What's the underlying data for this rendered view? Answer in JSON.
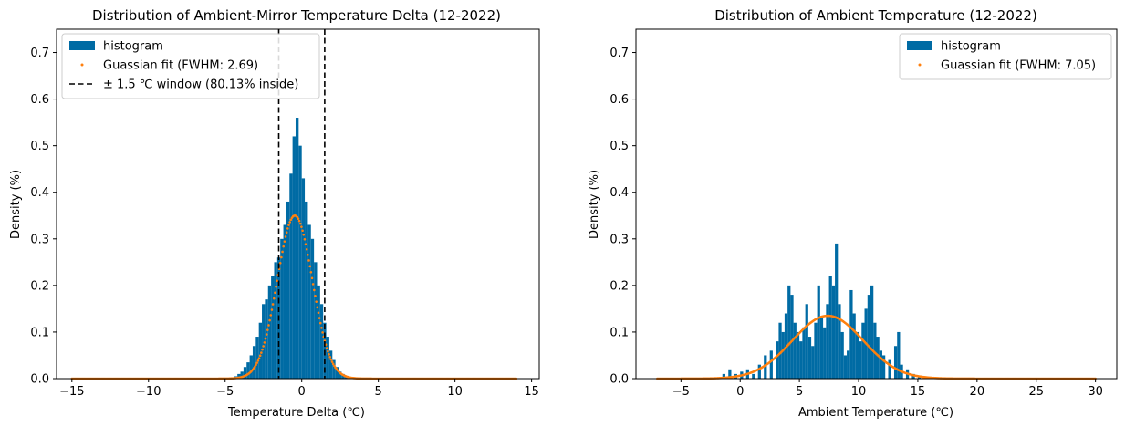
{
  "chart_data": [
    {
      "type": "bar",
      "title": "Distribution of Ambient-Mirror Temperature Delta (12-2022)",
      "xlabel": "Temperature Delta (℃)",
      "ylabel": "Density (%)",
      "xlim": [
        -16,
        15.5
      ],
      "ylim": [
        0,
        0.75
      ],
      "xticks": [
        -15,
        -10,
        -5,
        0,
        5,
        10,
        15
      ],
      "xtick_labels": [
        "−15",
        "−10",
        "−5",
        "0",
        "5",
        "10",
        "15"
      ],
      "yticks": [
        0.0,
        0.1,
        0.2,
        0.3,
        0.4,
        0.5,
        0.6,
        0.7
      ],
      "ytick_labels": [
        "0.0",
        "0.1",
        "0.2",
        "0.3",
        "0.4",
        "0.5",
        "0.6",
        "0.7"
      ],
      "legend_position": "top-left",
      "series": [
        {
          "name": "histogram",
          "kind": "histogram",
          "color": "#006ba4",
          "bin_width": 0.2,
          "x": [
            -4.4,
            -4.2,
            -4.0,
            -3.8,
            -3.6,
            -3.4,
            -3.2,
            -3.0,
            -2.8,
            -2.6,
            -2.4,
            -2.2,
            -2.0,
            -1.8,
            -1.6,
            -1.4,
            -1.2,
            -1.0,
            -0.8,
            -0.6,
            -0.4,
            -0.2,
            0.0,
            0.2,
            0.4,
            0.6,
            0.8,
            1.0,
            1.2,
            1.4,
            1.6,
            1.8,
            2.0,
            2.2,
            2.4,
            2.6,
            2.8,
            3.0
          ],
          "values": [
            0.005,
            0.01,
            0.015,
            0.025,
            0.035,
            0.05,
            0.07,
            0.09,
            0.12,
            0.16,
            0.17,
            0.2,
            0.22,
            0.25,
            0.26,
            0.3,
            0.33,
            0.38,
            0.44,
            0.52,
            0.56,
            0.5,
            0.43,
            0.38,
            0.33,
            0.3,
            0.25,
            0.2,
            0.16,
            0.12,
            0.09,
            0.06,
            0.04,
            0.025,
            0.015,
            0.01,
            0.005,
            0.003
          ]
        },
        {
          "name": "Guassian fit (FWHM: 2.69)",
          "kind": "gaussian",
          "color": "#ff800e",
          "mean": -0.45,
          "fwhm": 2.69,
          "peak": 0.35,
          "x_range": [
            -15,
            14
          ]
        },
        {
          "name": "± 1.5 ℃ window (80.13% inside)",
          "kind": "vlines",
          "color": "#000000",
          "x": [
            -1.5,
            1.5
          ]
        }
      ]
    },
    {
      "type": "bar",
      "title": "Distribution of Ambient Temperature (12-2022)",
      "xlabel": "Ambient Temperature (℃)",
      "ylabel": "Density (%)",
      "xlim": [
        -8.8,
        31.8
      ],
      "ylim": [
        0,
        0.75
      ],
      "xticks": [
        -5,
        0,
        5,
        10,
        15,
        20,
        25,
        30
      ],
      "xtick_labels": [
        "−5",
        "0",
        "5",
        "10",
        "15",
        "20",
        "25",
        "30"
      ],
      "yticks": [
        0.0,
        0.1,
        0.2,
        0.3,
        0.4,
        0.5,
        0.6,
        0.7
      ],
      "ytick_labels": [
        "0.0",
        "0.1",
        "0.2",
        "0.3",
        "0.4",
        "0.5",
        "0.6",
        "0.7"
      ],
      "legend_position": "top-right",
      "series": [
        {
          "name": "histogram",
          "kind": "histogram",
          "color": "#006ba4",
          "bin_width": 0.25,
          "x": [
            -1.5,
            -1.0,
            -0.5,
            0.0,
            0.5,
            1.0,
            1.5,
            2.0,
            2.5,
            3.0,
            3.25,
            3.5,
            3.75,
            4.0,
            4.25,
            4.5,
            4.75,
            5.0,
            5.25,
            5.5,
            5.75,
            6.0,
            6.25,
            6.5,
            6.75,
            7.0,
            7.25,
            7.5,
            7.75,
            8.0,
            8.25,
            8.5,
            8.75,
            9.0,
            9.25,
            9.5,
            9.75,
            10.0,
            10.25,
            10.5,
            10.75,
            11.0,
            11.25,
            11.5,
            11.75,
            12.0,
            12.5,
            13.0,
            13.25,
            13.5,
            14.0,
            14.5,
            15.0
          ],
          "values": [
            0.01,
            0.02,
            0.01,
            0.015,
            0.02,
            0.01,
            0.03,
            0.05,
            0.06,
            0.08,
            0.12,
            0.1,
            0.14,
            0.2,
            0.18,
            0.12,
            0.1,
            0.08,
            0.11,
            0.16,
            0.09,
            0.07,
            0.12,
            0.2,
            0.13,
            0.11,
            0.16,
            0.22,
            0.2,
            0.29,
            0.16,
            0.1,
            0.05,
            0.06,
            0.19,
            0.14,
            0.1,
            0.08,
            0.12,
            0.15,
            0.18,
            0.2,
            0.12,
            0.09,
            0.06,
            0.05,
            0.04,
            0.07,
            0.1,
            0.03,
            0.02,
            0.01,
            0.005
          ]
        },
        {
          "name": "Guassian fit (FWHM: 7.05)",
          "kind": "gaussian",
          "color": "#ff800e",
          "mean": 7.4,
          "fwhm": 7.05,
          "peak": 0.135,
          "x_range": [
            -7,
            30
          ]
        }
      ]
    }
  ]
}
